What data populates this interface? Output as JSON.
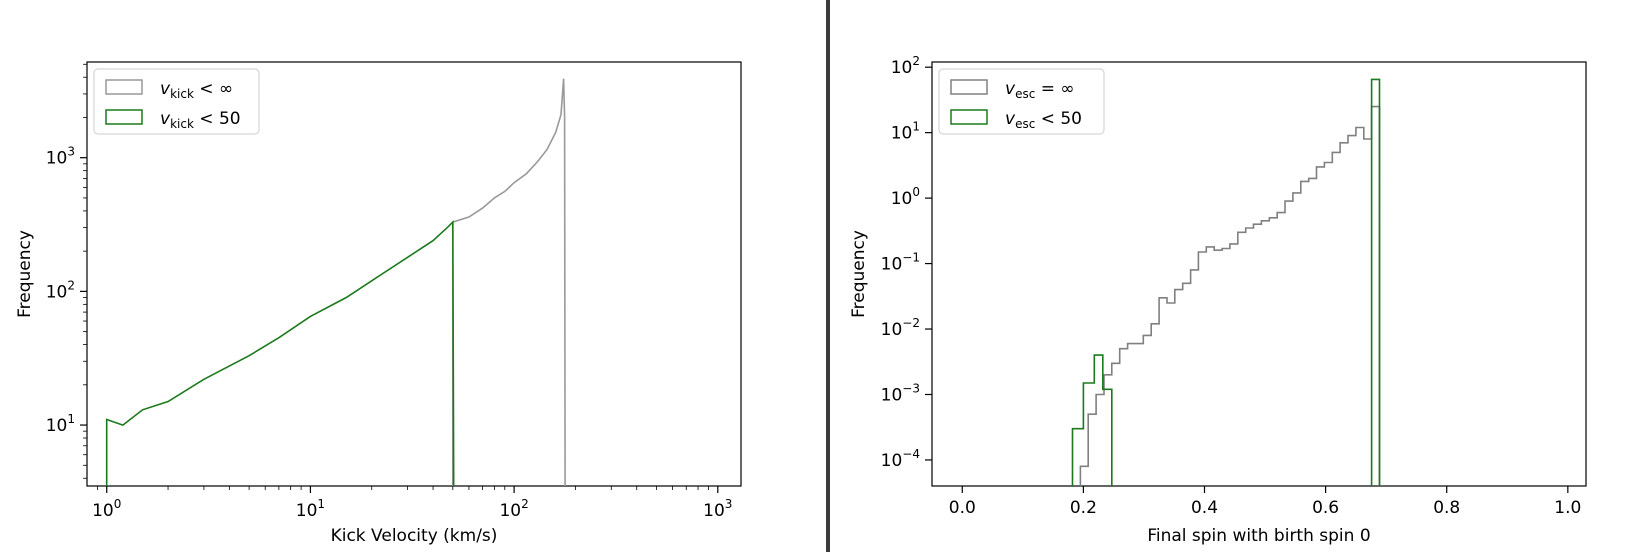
{
  "chart_data": [
    {
      "type": "line",
      "xlabel": "Kick Velocity (km/s)",
      "ylabel": "Frequency",
      "xscale": "log",
      "yscale": "log",
      "xlim": [
        0.8,
        1300
      ],
      "ylim": [
        3.5,
        5200
      ],
      "grid": false,
      "legend_placement": "top-left",
      "x_ticks": [
        {
          "value": 1,
          "base": "10",
          "exp": "0"
        },
        {
          "value": 10,
          "base": "10",
          "exp": "1"
        },
        {
          "value": 100,
          "base": "10",
          "exp": "2"
        },
        {
          "value": 1000,
          "base": "10",
          "exp": "3"
        }
      ],
      "y_ticks": [
        {
          "value": 10,
          "base": "10",
          "exp": "1"
        },
        {
          "value": 100,
          "base": "10",
          "exp": "2"
        },
        {
          "value": 1000,
          "base": "10",
          "exp": "3"
        }
      ],
      "series": [
        {
          "legend_symbol": "v",
          "legend_sub": "kick",
          "legend_rest": " < ∞",
          "color": "#999999",
          "x": [
            50,
            60,
            70,
            80,
            90,
            100,
            115,
            130,
            145,
            160,
            170,
            175,
            177,
            178
          ],
          "y": [
            330,
            360,
            420,
            500,
            560,
            650,
            760,
            930,
            1150,
            1550,
            2100,
            3900,
            2000,
            3.5
          ]
        },
        {
          "legend_symbol": "v",
          "legend_sub": "kick",
          "legend_rest": " < 50",
          "color": "#1b7a1b",
          "x": [
            1.0,
            1.2,
            1.5,
            2,
            3,
            5,
            7,
            10,
            15,
            20,
            30,
            40,
            47,
            50,
            50.5
          ],
          "y": [
            11,
            10,
            13,
            15,
            22,
            33,
            45,
            65,
            90,
            120,
            180,
            240,
            300,
            330,
            3.5
          ]
        }
      ]
    },
    {
      "type": "bar",
      "xlabel": "Final spin with birth spin 0",
      "ylabel": "Frequency",
      "yscale": "log",
      "xlim": [
        -0.05,
        1.03
      ],
      "ylim": [
        4e-05,
        120
      ],
      "grid": false,
      "legend_placement": "top-left",
      "x_ticks": [
        "0.0",
        "0.2",
        "0.4",
        "0.6",
        "0.8",
        "1.0"
      ],
      "y_ticks": [
        {
          "value": 0.0001,
          "base": "10",
          "exp": "−4"
        },
        {
          "value": 0.001,
          "base": "10",
          "exp": "−3"
        },
        {
          "value": 0.01,
          "base": "10",
          "exp": "−2"
        },
        {
          "value": 0.1,
          "base": "10",
          "exp": "−1"
        },
        {
          "value": 1,
          "base": "10",
          "exp": "0"
        },
        {
          "value": 10,
          "base": "10",
          "exp": "1"
        },
        {
          "value": 100,
          "base": "10",
          "exp": "2"
        }
      ],
      "series": [
        {
          "legend_symbol": "v",
          "legend_sub": "esc",
          "legend_rest": " = ∞",
          "color": "#808080",
          "bin_edges": [
            0.195,
            0.208,
            0.221,
            0.234,
            0.247,
            0.26,
            0.273,
            0.286,
            0.299,
            0.312,
            0.325,
            0.338,
            0.351,
            0.364,
            0.377,
            0.39,
            0.403,
            0.416,
            0.429,
            0.442,
            0.455,
            0.468,
            0.481,
            0.494,
            0.507,
            0.52,
            0.533,
            0.546,
            0.559,
            0.572,
            0.585,
            0.598,
            0.611,
            0.624,
            0.637,
            0.65,
            0.663,
            0.676,
            0.689
          ],
          "values": [
            8e-05,
            0.0005,
            0.001,
            0.002,
            0.003,
            0.005,
            0.006,
            0.006,
            0.008,
            0.012,
            0.03,
            0.025,
            0.04,
            0.05,
            0.08,
            0.15,
            0.18,
            0.16,
            0.17,
            0.2,
            0.3,
            0.35,
            0.4,
            0.45,
            0.5,
            0.6,
            0.9,
            1.2,
            1.8,
            2.0,
            3.0,
            3.5,
            5.0,
            7.0,
            9.0,
            12.0,
            8.0,
            25.0
          ]
        },
        {
          "legend_symbol": "v",
          "legend_sub": "esc",
          "legend_rest": " < 50",
          "color": "#1b7a1b",
          "bin_edges": [
            0.182,
            0.2,
            0.218,
            0.232,
            0.247
          ],
          "values": [
            0.0003,
            0.0015,
            0.004,
            0.0012
          ],
          "bin_edges_2": [
            0.676,
            0.689
          ],
          "values_2": [
            65.0
          ]
        }
      ]
    }
  ]
}
